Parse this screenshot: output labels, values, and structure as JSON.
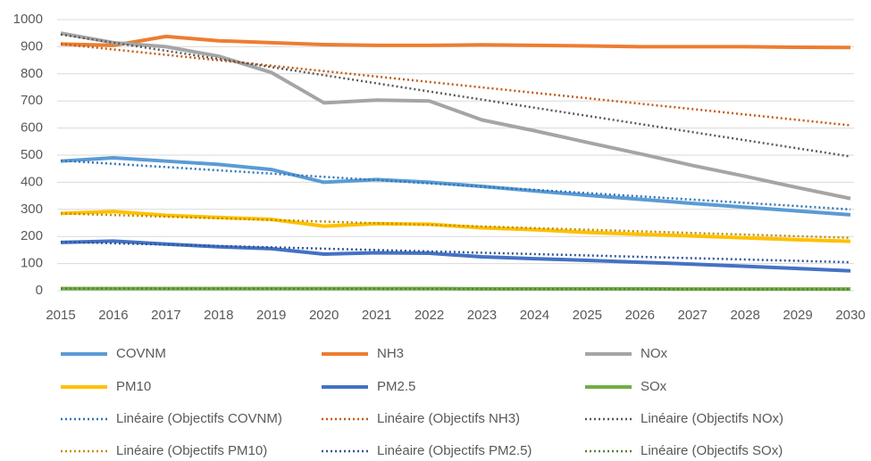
{
  "chart_data": {
    "type": "line",
    "categories": [
      "2015",
      "2016",
      "2017",
      "2018",
      "2019",
      "2020",
      "2021",
      "2022",
      "2023",
      "2024",
      "2025",
      "2026",
      "2027",
      "2028",
      "2029",
      "2030"
    ],
    "ylim": [
      0,
      1000
    ],
    "yticks": [
      0,
      100,
      200,
      300,
      400,
      500,
      600,
      700,
      800,
      900,
      1000
    ],
    "grid": true,
    "legend": "bottom",
    "series": [
      {
        "name": "COVNM",
        "color": "#5b9bd5",
        "style": "solid",
        "values": [
          478,
          490,
          478,
          466,
          447,
          400,
          410,
          400,
          385,
          368,
          352,
          337,
          322,
          308,
          294,
          280
        ]
      },
      {
        "name": "NH3",
        "color": "#ed7d31",
        "style": "solid",
        "values": [
          910,
          905,
          938,
          922,
          915,
          908,
          905,
          905,
          907,
          905,
          903,
          900,
          900,
          900,
          898,
          897
        ]
      },
      {
        "name": "NOx",
        "color": "#a5a5a5",
        "style": "solid",
        "values": [
          950,
          915,
          900,
          865,
          805,
          693,
          703,
          700,
          630,
          590,
          547,
          505,
          462,
          422,
          380,
          340
        ]
      },
      {
        "name": "PM10",
        "color": "#ffc000",
        "style": "solid",
        "values": [
          285,
          292,
          278,
          270,
          263,
          238,
          247,
          245,
          232,
          225,
          215,
          208,
          202,
          195,
          188,
          182
        ]
      },
      {
        "name": "PM2.5",
        "color": "#4472c4",
        "style": "solid",
        "values": [
          178,
          183,
          172,
          162,
          155,
          135,
          140,
          138,
          125,
          118,
          112,
          105,
          98,
          90,
          82,
          73
        ]
      },
      {
        "name": "SOx",
        "color": "#70ad47",
        "style": "solid",
        "values": [
          8,
          8,
          8,
          8,
          8,
          8,
          8,
          8,
          7,
          7,
          7,
          7,
          6,
          6,
          6,
          6
        ]
      },
      {
        "name": "Linéaire (Objectifs COVNM)",
        "color": "#2e75b6",
        "style": "dotted",
        "values": [
          480,
          468,
          456,
          444,
          432,
          420,
          408,
          396,
          384,
          372,
          360,
          348,
          336,
          324,
          312,
          300
        ]
      },
      {
        "name": "Linéaire (Objectifs NH3)",
        "color": "#c55a11",
        "style": "dotted",
        "values": [
          910,
          890,
          870,
          850,
          830,
          810,
          790,
          770,
          750,
          730,
          710,
          690,
          670,
          650,
          630,
          610
        ]
      },
      {
        "name": "Linéaire (Objectifs NOx)",
        "color": "#595959",
        "style": "dotted",
        "values": [
          945,
          915,
          885,
          855,
          825,
          795,
          765,
          735,
          705,
          675,
          645,
          615,
          585,
          555,
          525,
          495
        ]
      },
      {
        "name": "Linéaire (Objectifs PM10)",
        "color": "#bf8f00",
        "style": "dotted",
        "values": [
          285,
          279,
          273,
          267,
          261,
          255,
          249,
          243,
          237,
          231,
          225,
          219,
          213,
          207,
          201,
          195
        ]
      },
      {
        "name": "Linéaire (Objectifs PM2.5)",
        "color": "#2f5597",
        "style": "dotted",
        "values": [
          180,
          175,
          170,
          165,
          160,
          155,
          150,
          145,
          140,
          135,
          130,
          125,
          120,
          115,
          110,
          105
        ]
      },
      {
        "name": "Linéaire (Objectifs SOx)",
        "color": "#548235",
        "style": "dotted",
        "values": [
          8,
          7.8,
          7.6,
          7.4,
          7.2,
          7,
          6.8,
          6.6,
          6.4,
          6.2,
          6,
          5.8,
          5.6,
          5.4,
          5.2,
          5
        ]
      }
    ]
  }
}
